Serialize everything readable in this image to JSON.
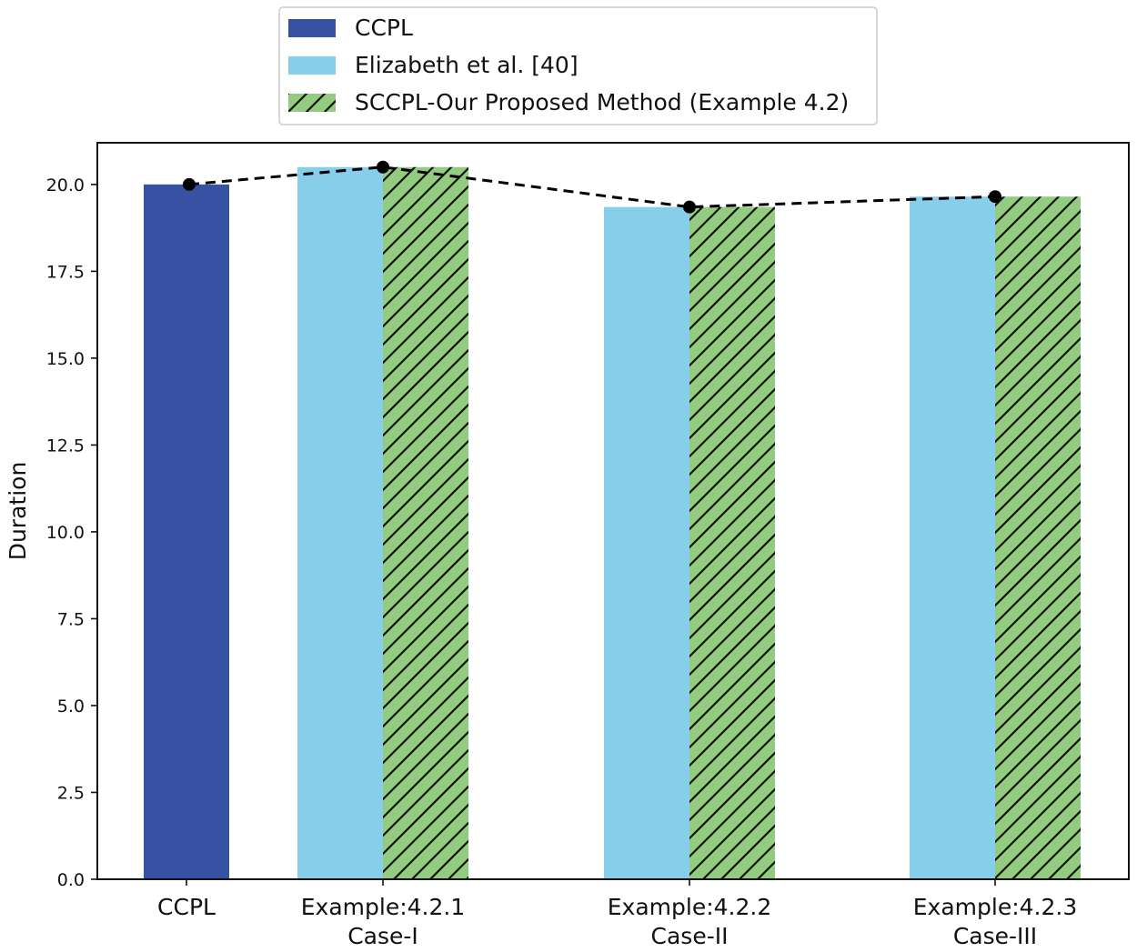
{
  "chart_data": {
    "type": "bar",
    "title": "",
    "xlabel": "",
    "ylabel": "Duration",
    "ylim": [
      0,
      21.2
    ],
    "yticks": [
      "0.0",
      "2.5",
      "5.0",
      "7.5",
      "10.0",
      "12.5",
      "15.0",
      "17.5",
      "20.0"
    ],
    "ytick_values": [
      0,
      2.5,
      5,
      7.5,
      10,
      12.5,
      15,
      17.5,
      20
    ],
    "categories": [
      {
        "line1": "CCPL",
        "line2": ""
      },
      {
        "line1": "Example:4.2.1",
        "line2": "Case-I"
      },
      {
        "line1": "Example:4.2.2",
        "line2": "Case-II"
      },
      {
        "line1": "Example:4.2.3",
        "line2": "Case-III"
      }
    ],
    "series": [
      {
        "name": "CCPL",
        "color": "#3752a3",
        "hatch": false,
        "values": [
          20.0,
          null,
          null,
          null
        ]
      },
      {
        "name": "Elizabeth et al. [40]",
        "color": "#87ceeb",
        "hatch": false,
        "values": [
          null,
          20.5,
          19.35,
          19.65
        ]
      },
      {
        "name": "SCCPL-Our Proposed Method (Example 4.2)",
        "color": "#93cc80",
        "hatch": true,
        "values": [
          null,
          20.5,
          19.35,
          19.65
        ]
      }
    ],
    "trend_line": {
      "style": "dashed",
      "color": "#000000",
      "values": [
        20.0,
        20.5,
        19.35,
        19.65
      ]
    },
    "legend": {
      "position": "top-center"
    },
    "grid": false
  }
}
